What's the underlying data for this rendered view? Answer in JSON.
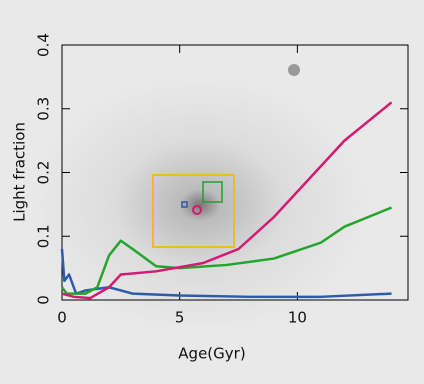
{
  "chart_data": {
    "type": "line",
    "x_label": "Age(Gyr)",
    "y_label": "Light fraction",
    "xlim": [
      0,
      14.7
    ],
    "ylim": [
      0,
      0.4
    ],
    "xticks": [
      0,
      5,
      10
    ],
    "yticks": [
      0,
      0.1,
      0.2,
      0.3,
      0.4
    ],
    "series": [
      {
        "color": "#2a5caa",
        "x": [
          0,
          0.1,
          0.3,
          0.6,
          1,
          2,
          3,
          5,
          8,
          11,
          14
        ],
        "values": [
          0.08,
          0.03,
          0.04,
          0.01,
          0.015,
          0.02,
          0.01,
          0.007,
          0.005,
          0.005,
          0.01
        ]
      },
      {
        "color": "#22a52a",
        "x": [
          0,
          0.2,
          0.5,
          1,
          1.5,
          2,
          2.5,
          3,
          4,
          5,
          7,
          9,
          11,
          12,
          14
        ],
        "values": [
          0.02,
          0.01,
          0.01,
          0.01,
          0.02,
          0.07,
          0.093,
          0.08,
          0.053,
          0.05,
          0.055,
          0.065,
          0.09,
          0.115,
          0.145
        ]
      },
      {
        "color": "#d41a72",
        "x": [
          0,
          0.5,
          1.2,
          2,
          2.5,
          4,
          6,
          7.5,
          9,
          10.5,
          12,
          14
        ],
        "values": [
          0.01,
          0.005,
          0.003,
          0.02,
          0.04,
          0.045,
          0.058,
          0.08,
          0.13,
          0.19,
          0.25,
          0.31
        ]
      }
    ]
  }
}
